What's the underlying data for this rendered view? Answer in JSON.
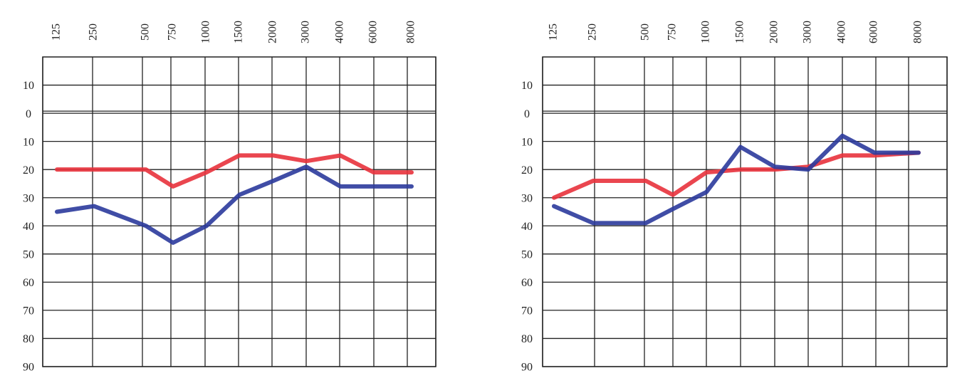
{
  "chart_data": [
    {
      "type": "line",
      "categories": [
        "125",
        "250",
        "500",
        "750",
        "1000",
        "1500",
        "2000",
        "3000",
        "4000",
        "6000",
        "8000"
      ],
      "series": [
        {
          "color": "#e8323c",
          "values": [
            20,
            20,
            20,
            26,
            21,
            15,
            15,
            17,
            15,
            21,
            21
          ]
        },
        {
          "color": "#2b3a9c",
          "values": [
            35,
            33,
            40,
            46,
            40,
            29,
            24,
            19,
            26,
            26,
            26
          ]
        }
      ],
      "ylim": [
        -20,
        90
      ],
      "y_inverted": true,
      "yticks": [
        {
          "value": -10,
          "label": "10"
        },
        0,
        10,
        20,
        30,
        40,
        50,
        60,
        70,
        80,
        90
      ],
      "grid": true
    },
    {
      "type": "line",
      "categories": [
        "125",
        "250",
        "500",
        "750",
        "1000",
        "1500",
        "2000",
        "3000",
        "4000",
        "6000",
        "8000"
      ],
      "series": [
        {
          "color": "#e8323c",
          "values": [
            30,
            24,
            24,
            29,
            21,
            20,
            20,
            19,
            15,
            15,
            14
          ]
        },
        {
          "color": "#2b3a9c",
          "values": [
            33,
            39,
            39,
            34,
            28,
            12,
            19,
            20,
            8,
            14,
            14
          ]
        }
      ],
      "ylim": [
        -20,
        90
      ],
      "y_inverted": true,
      "yticks": [
        {
          "value": -10,
          "label": "10"
        },
        0,
        10,
        20,
        30,
        40,
        50,
        60,
        70,
        80,
        90
      ],
      "grid": true
    }
  ]
}
